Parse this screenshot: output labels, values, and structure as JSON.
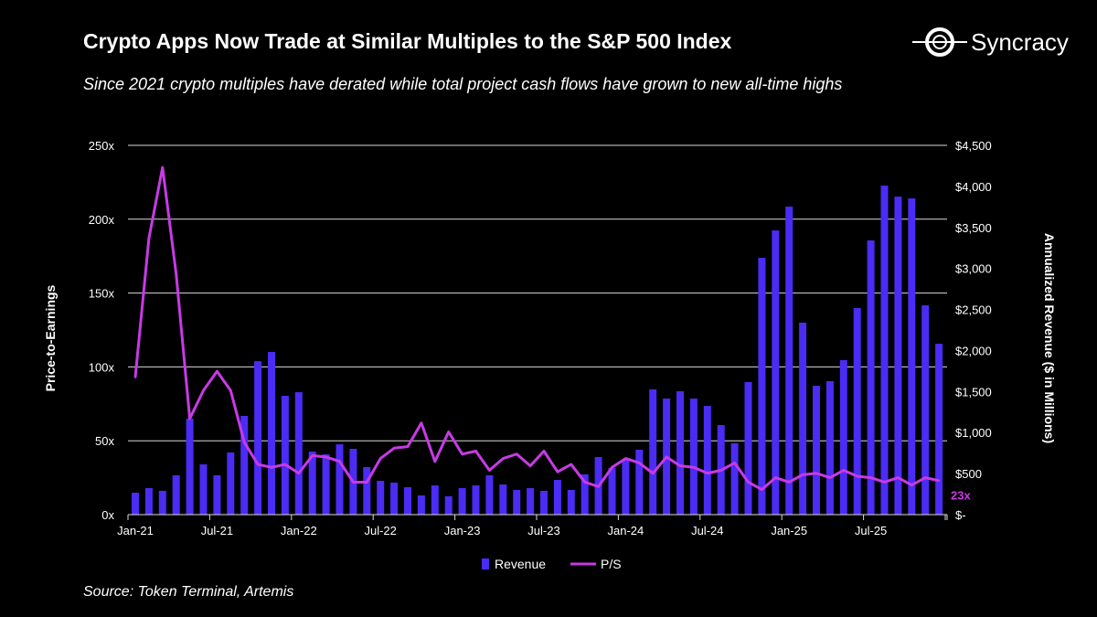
{
  "header": {
    "title": "Crypto Apps Now Trade at Similar Multiples to the S&P 500 Index",
    "subtitle": "Since 2021 crypto multiples have derated while total project cash flows have grown to new all-time highs",
    "logo_text": "Syncracy"
  },
  "footer": {
    "source": "Source: Token Terminal, Artemis"
  },
  "colors": {
    "revenue": "#4a2cf5",
    "ps": "#c83ae6",
    "grid": "#d9d9d9"
  },
  "chart_data": {
    "type": "bar+line",
    "title": "Crypto Apps Now Trade at Similar Multiples to the S&P 500 Index",
    "ylabel_left": "Price-to-Earnings",
    "ylabel_right": "Annualized Revenue ($ in Millions)",
    "ylim_left": [
      0,
      250
    ],
    "ylim_right": [
      0,
      4500
    ],
    "left_ticks": [
      "0x",
      "50x",
      "100x",
      "150x",
      "200x",
      "250x"
    ],
    "right_ticks": [
      "$-",
      "$500",
      "$1,000",
      "$1,500",
      "$2,000",
      "$2,500",
      "$3,000",
      "$3,500",
      "$4,000",
      "$4,500"
    ],
    "x_tick_labels": [
      "Jan-21",
      "Jul-21",
      "Jan-22",
      "Jul-22",
      "Jan-23",
      "Jul-23",
      "Jan-24",
      "Jul-24",
      "Jan-25",
      "Jul-25"
    ],
    "x_start": "Jan-21",
    "grid": true,
    "legend_position": "bottom",
    "last_label": "23x",
    "series": [
      {
        "name": "Revenue",
        "type": "bar",
        "axis": "right",
        "values": [
          267,
          323,
          290,
          479,
          1170,
          612,
          479,
          757,
          1203,
          1870,
          1982,
          1448,
          1492,
          768,
          735,
          857,
          802,
          579,
          412,
          390,
          334,
          234,
          356,
          223,
          323,
          356,
          479,
          367,
          301,
          323,
          290,
          423,
          301,
          490,
          702,
          568,
          668,
          791,
          1526,
          1414,
          1503,
          1414,
          1325,
          1091,
          869,
          1615,
          3129,
          3463,
          3753,
          2339,
          1570,
          1626,
          1882,
          2517,
          3341,
          4009,
          3875,
          3853,
          2550,
          2082
        ]
      },
      {
        "name": "P/S",
        "type": "line",
        "axis": "left",
        "values": [
          93,
          187,
          235,
          163,
          65,
          84,
          97,
          84,
          49,
          34,
          32,
          34,
          28,
          40,
          39,
          36,
          22,
          22,
          38,
          45,
          46,
          62,
          36,
          56,
          41,
          43,
          30,
          38,
          41,
          33,
          43,
          29,
          34,
          22,
          19,
          32,
          38,
          35,
          28,
          39,
          33,
          32,
          28,
          30,
          35,
          22,
          17,
          25,
          22,
          27,
          28,
          25,
          30,
          26,
          25,
          22,
          25,
          20,
          25,
          23
        ]
      }
    ]
  }
}
